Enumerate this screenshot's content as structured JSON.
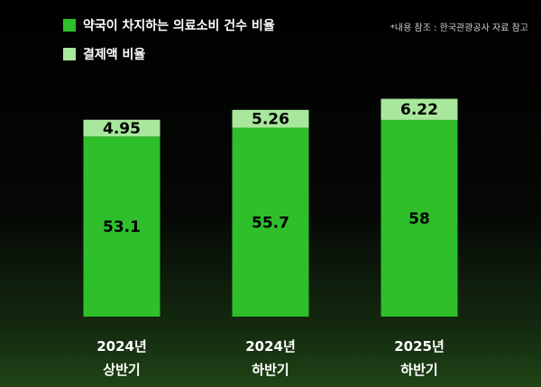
{
  "legend": [
    {
      "label": "약국이 차지하는 의료소비 건수 비율",
      "color": "#2ebf2b"
    },
    {
      "label": "결제액  비율",
      "color": "#a8e89c"
    }
  ],
  "source_note": "*내용 참조 : 한국관광공사 자료 참고",
  "chart_data": {
    "type": "bar",
    "stacked": true,
    "categories": [
      [
        "2024년",
        "상반기"
      ],
      [
        "2024년",
        "하반기"
      ],
      [
        "2025년",
        "하반기"
      ]
    ],
    "series": [
      {
        "name": "약국이 차지하는 의료소비 건수 비율",
        "values": [
          53.1,
          55.7,
          58
        ],
        "color": "#2ebf2b"
      },
      {
        "name": "결제액  비율",
        "values": [
          4.95,
          5.26,
          6.22
        ],
        "color": "#a8e89c"
      }
    ],
    "grid": false,
    "legend_position": "top-left"
  }
}
